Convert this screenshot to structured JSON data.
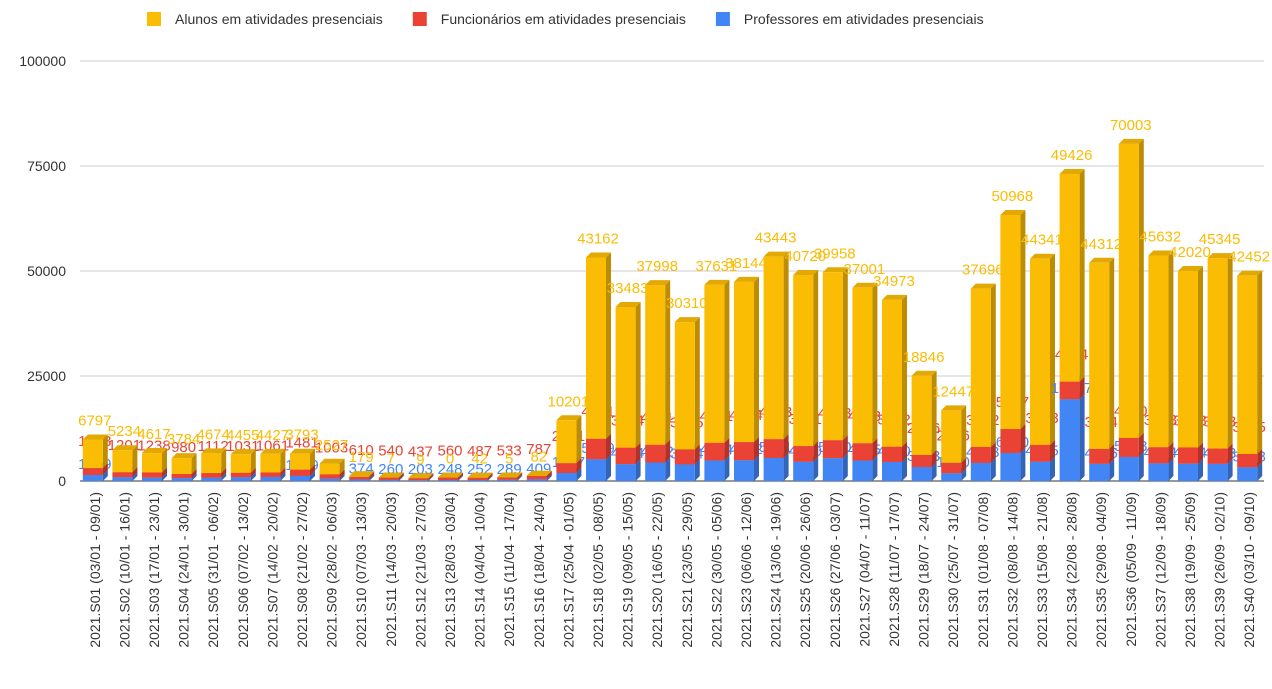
{
  "chart_data": {
    "type": "stacked-bar",
    "categories": [
      "2021.S01 (03/01 - 09/01)",
      "2021.S02 (10/01 - 16/01)",
      "2021.S03 (17/01 - 23/01)",
      "2021.S04 (24/01 - 30/01)",
      "2021.S05 (31/01 - 06/02)",
      "2021.S06 (07/02 - 13/02)",
      "2021.S07 (14/02 - 20/02)",
      "2021.S08 (21/02 - 27/02)",
      "2021.S09 (28/02 - 06/03)",
      "2021.S10 (07/03 - 13/03)",
      "2021.S11 (14/03 - 20/03)",
      "2021.S12 (21/03 - 27/03)",
      "2021.S13 (28/03 - 03/04)",
      "2021.S14 (04/04 - 10/04)",
      "2021.S15 (11/04 - 17/04)",
      "2021.S16 (18/04 - 24/04)",
      "2021.S17 (25/04 - 01/05)",
      "2021.S18 (02/05 - 08/05)",
      "2021.S19 (09/05 - 15/05)",
      "2021.S20 (16/05 - 22/05)",
      "2021.S21 (23/05 - 29/05)",
      "2021.S22 (30/05 - 05/06)",
      "2021.S23 (06/06 - 12/06)",
      "2021.S24 (13/06 - 19/06)",
      "2021.S25 (20/06 - 26/06)",
      "2021.S26 (27/06 - 03/07)",
      "2021.S27 (04/07 - 11/07)",
      "2021.S28 (11/07 - 17/07)",
      "2021.S29 (18/07 - 24/07)",
      "2021.S30 (25/07 - 31/07)",
      "2021.S31 (01/08 - 07/08)",
      "2021.S32 (08/08 - 14/08)",
      "2021.S33 (15/08 - 21/08)",
      "2021.S34 (22/08 - 28/08)",
      "2021.S35 (29/08 - 04/09)",
      "2021.S36 (05/09 - 11/09)",
      "2021.S37 (12/09 - 18/09)",
      "2021.S38 (19/09 - 25/09)",
      "2021.S39 (26/09 - 02/10)",
      "2021.S40 (03/10 - 09/10)"
    ],
    "series": [
      {
        "name": "Alunos em atividades presenciais",
        "color": "#fbbc04",
        "values": [
          6797,
          5234,
          4617,
          3784,
          4674,
          4455,
          4427,
          3793,
          2527,
          179,
          7,
          9,
          0,
          42,
          5,
          82,
          10201,
          43162,
          33483,
          37998,
          30310,
          37631,
          38144,
          43443,
          40720,
          39958,
          37001,
          34973,
          18846,
          12447,
          37696,
          50968,
          44341,
          49426,
          44312,
          70003,
          45632,
          42020,
          45345,
          42452
        ]
      },
      {
        "name": "Funcionários em atividades presenciais",
        "color": "#ea4335",
        "values": [
          1643,
          1201,
          1238,
          980,
          1112,
          1031,
          1061,
          1481,
          1003,
          610,
          540,
          437,
          560,
          487,
          533,
          787,
          2341,
          4881,
          3924,
          4251,
          3575,
          4171,
          4324,
          4483,
          3741,
          4293,
          4123,
          3632,
          2866,
          2506,
          3792,
          5707,
          3983,
          4204,
          3544,
          4530,
          3853,
          3863,
          3633,
          3165
        ]
      },
      {
        "name": "Professores em atividades presenciais",
        "color": "#4285f4",
        "values": [
          1439,
          901,
          798,
          685,
          782,
          906,
          969,
          1219,
          576,
          374,
          260,
          203,
          248,
          252,
          289,
          409,
          1917,
          5179,
          4024,
          4402,
          3954,
          4904,
          4952,
          5491,
          4580,
          5440,
          4875,
          4530,
          3333,
          1850,
          4313,
          6670,
          4595,
          19467,
          4095,
          5733,
          4214,
          4124,
          4093,
          3268
        ]
      }
    ],
    "ylim": [
      0,
      100000
    ],
    "yticks": [
      0,
      25000,
      50000,
      75000,
      100000
    ],
    "grid": true,
    "legend": "top"
  }
}
